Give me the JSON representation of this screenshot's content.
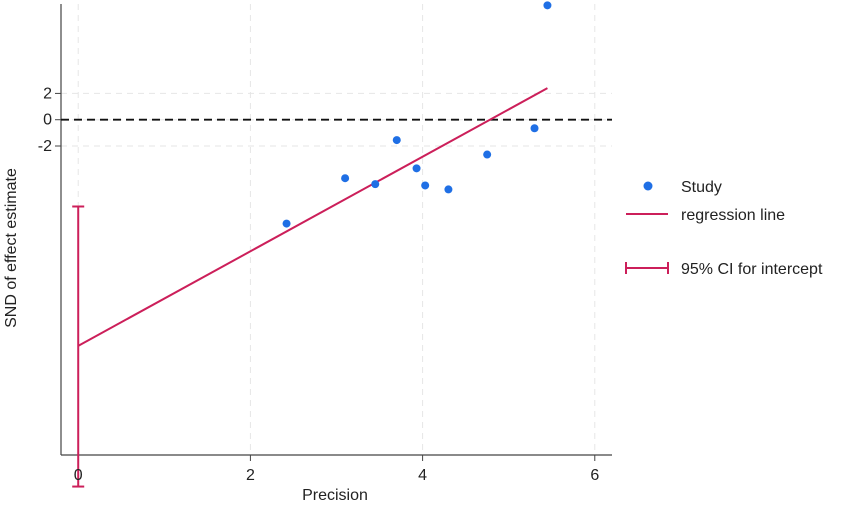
{
  "chart_data": {
    "type": "scatter",
    "title": "",
    "xlabel": "Precision",
    "ylabel": "SND of effect estimate",
    "xlim": [
      -0.2,
      6.2
    ],
    "ylim": [
      -25.5,
      8.8
    ],
    "x_ticks": [
      0,
      2,
      4,
      6
    ],
    "x_tick_labels": [
      "0",
      "2",
      "4",
      "6"
    ],
    "y_ticks": [
      2,
      0,
      -2
    ],
    "y_tick_labels": [
      "2",
      "0",
      "-2"
    ],
    "grid": true,
    "reference_line_y": 0,
    "legend_position": "right",
    "series": [
      {
        "name": "Study",
        "kind": "points",
        "color": "#1f6fe5",
        "x": [
          2.42,
          3.1,
          3.45,
          3.7,
          3.93,
          4.03,
          4.3,
          4.75,
          5.3,
          5.45
        ],
        "y": [
          -7.9,
          -4.45,
          -4.9,
          -1.55,
          -3.7,
          -5.0,
          -5.3,
          -2.65,
          -0.65,
          8.7
        ]
      },
      {
        "name": "regression line",
        "kind": "line",
        "color": "#cc1f5a",
        "x": [
          0,
          5.45
        ],
        "y": [
          -17.2,
          2.4
        ]
      },
      {
        "name": "95% CI for intercept",
        "kind": "errorbar",
        "color": "#cc1f5a",
        "x": 0,
        "low": -27.9,
        "high": -6.6
      }
    ]
  }
}
